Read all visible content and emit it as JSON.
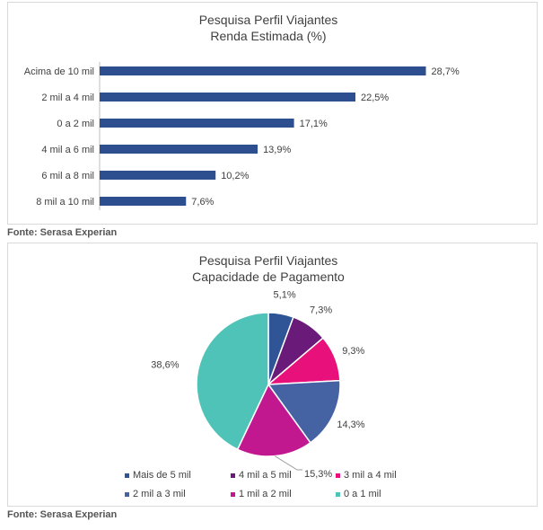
{
  "chart_data": [
    {
      "type": "bar",
      "orientation": "horizontal",
      "title": "Pesquisa Perfil Viajantes",
      "subtitle": "Renda Estimada (%)",
      "categories": [
        "Acima de 10 mil",
        "2 mil a 4 mil",
        "0 a 2 mil",
        "4 mil a 6 mil",
        "6 mil a 8 mil",
        "8 mil a 10 mil"
      ],
      "values": [
        28.7,
        22.5,
        17.1,
        13.9,
        10.2,
        7.6
      ],
      "value_labels": [
        "28,7%",
        "22,5%",
        "17,1%",
        "13,9%",
        "10,2%",
        "7,6%"
      ],
      "bar_color": "#2e4f8f",
      "grid": false,
      "xlim": [
        0,
        30
      ]
    },
    {
      "type": "pie",
      "title": "Pesquisa Perfil Viajantes",
      "subtitle": "Capacidade de Pagamento",
      "slices": [
        {
          "label": "Mais de 5 mil",
          "value": 5.1,
          "value_label": "5,1%",
          "color": "#2f5597"
        },
        {
          "label": "4 mil a 5 mil",
          "value": 7.3,
          "value_label": "7,3%",
          "color": "#6a1b7a"
        },
        {
          "label": "3 mil a 4 mil",
          "value": 9.3,
          "value_label": "9,3%",
          "color": "#e8107a"
        },
        {
          "label": "2 mil a 3 mil",
          "value": 14.3,
          "value_label": "14,3%",
          "color": "#4563a3"
        },
        {
          "label": "1 mil a 2 mil",
          "value": 15.3,
          "value_label": "15,3%",
          "color": "#c2188f"
        },
        {
          "label": "0 a 1 mil",
          "value": 38.6,
          "value_label": "38,6%",
          "color": "#4fc3b8"
        }
      ],
      "legend_position": "bottom"
    }
  ],
  "sources": [
    "Fonte: Serasa Experian",
    "Fonte: Serasa Experian"
  ]
}
